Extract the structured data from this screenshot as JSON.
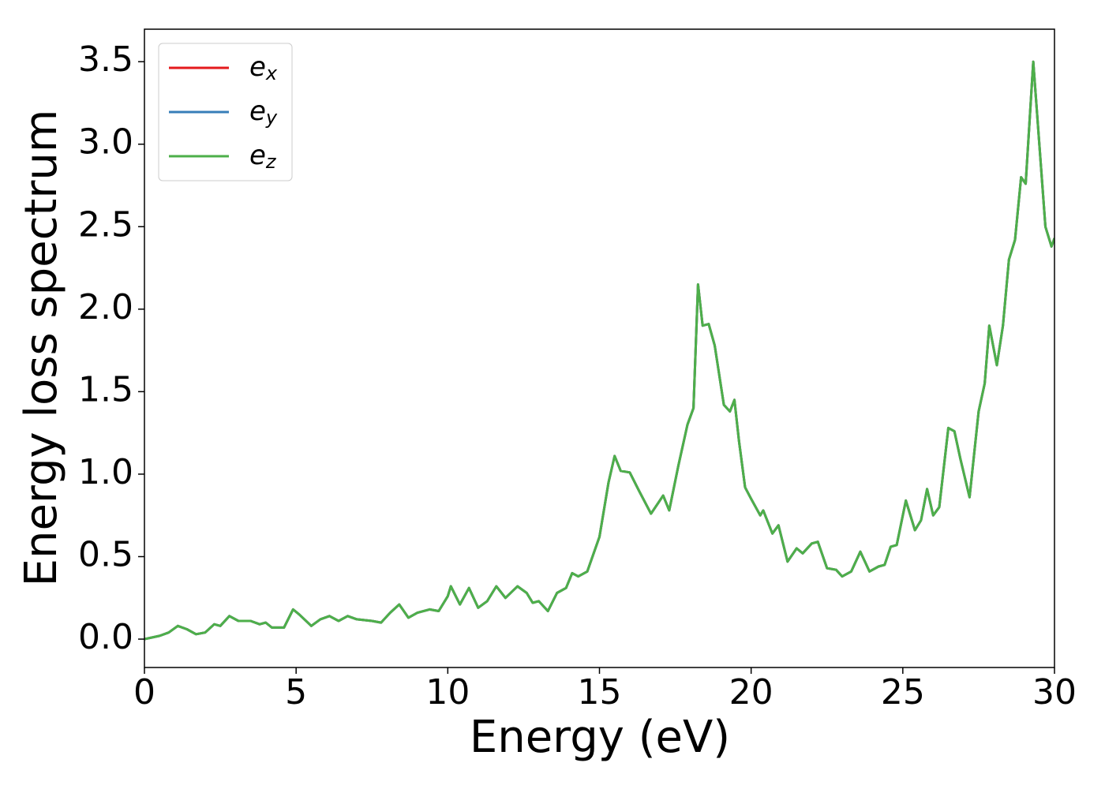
{
  "chart_data": {
    "type": "line",
    "xlabel": "Energy (eV)",
    "ylabel": "Energy loss spectrum",
    "x": [
      0,
      0.5,
      0.8,
      1.1,
      1.4,
      1.7,
      2.0,
      2.3,
      2.5,
      2.8,
      3.1,
      3.5,
      3.8,
      4.0,
      4.2,
      4.6,
      4.9,
      5.1,
      5.5,
      5.8,
      6.1,
      6.4,
      6.7,
      7.0,
      7.5,
      7.8,
      8.1,
      8.4,
      8.7,
      9.0,
      9.4,
      9.7,
      10.0,
      10.1,
      10.4,
      10.7,
      11.0,
      11.3,
      11.6,
      11.9,
      12.3,
      12.6,
      12.8,
      13.0,
      13.3,
      13.6,
      13.9,
      14.1,
      14.3,
      14.6,
      15.0,
      15.3,
      15.5,
      15.7,
      16.0,
      16.3,
      16.7,
      17.1,
      17.3,
      17.6,
      17.9,
      18.1,
      18.25,
      18.4,
      18.6,
      18.8,
      19.1,
      19.3,
      19.45,
      19.6,
      19.8,
      20.0,
      20.3,
      20.4,
      20.7,
      20.9,
      21.2,
      21.5,
      21.7,
      22.0,
      22.2,
      22.5,
      22.8,
      23.0,
      23.3,
      23.6,
      23.9,
      24.2,
      24.4,
      24.6,
      24.8,
      25.1,
      25.4,
      25.6,
      25.8,
      26.0,
      26.2,
      26.5,
      26.7,
      26.9,
      27.2,
      27.5,
      27.7,
      27.85,
      28.1,
      28.3,
      28.5,
      28.7,
      28.9,
      29.05,
      29.3,
      29.5,
      29.7,
      29.9,
      30
    ],
    "series": [
      {
        "name": "e",
        "sub": "x",
        "color": "#e41a1c",
        "values": [
          0,
          0.02,
          0.04,
          0.08,
          0.06,
          0.03,
          0.04,
          0.09,
          0.08,
          0.14,
          0.11,
          0.11,
          0.09,
          0.1,
          0.07,
          0.07,
          0.18,
          0.15,
          0.08,
          0.12,
          0.14,
          0.11,
          0.14,
          0.12,
          0.11,
          0.1,
          0.16,
          0.21,
          0.13,
          0.16,
          0.18,
          0.17,
          0.26,
          0.32,
          0.21,
          0.31,
          0.19,
          0.23,
          0.32,
          0.25,
          0.32,
          0.28,
          0.22,
          0.23,
          0.17,
          0.28,
          0.31,
          0.4,
          0.38,
          0.41,
          0.62,
          0.95,
          1.11,
          1.02,
          1.01,
          0.9,
          0.76,
          0.87,
          0.78,
          1.05,
          1.3,
          1.4,
          2.15,
          1.9,
          1.91,
          1.78,
          1.42,
          1.38,
          1.45,
          1.2,
          0.92,
          0.85,
          0.75,
          0.78,
          0.64,
          0.69,
          0.47,
          0.55,
          0.52,
          0.58,
          0.59,
          0.43,
          0.42,
          0.38,
          0.41,
          0.53,
          0.41,
          0.44,
          0.45,
          0.56,
          0.57,
          0.84,
          0.66,
          0.72,
          0.91,
          0.75,
          0.8,
          1.28,
          1.26,
          1.09,
          0.86,
          1.38,
          1.55,
          1.9,
          1.66,
          1.9,
          2.3,
          2.42,
          2.8,
          2.76,
          3.5,
          3.0,
          2.5,
          2.38,
          2.43
        ]
      },
      {
        "name": "e",
        "sub": "y",
        "color": "#377eb8",
        "values": [
          0,
          0.02,
          0.04,
          0.08,
          0.06,
          0.03,
          0.04,
          0.09,
          0.08,
          0.14,
          0.11,
          0.11,
          0.09,
          0.1,
          0.07,
          0.07,
          0.18,
          0.15,
          0.08,
          0.12,
          0.14,
          0.11,
          0.14,
          0.12,
          0.11,
          0.1,
          0.16,
          0.21,
          0.13,
          0.16,
          0.18,
          0.17,
          0.26,
          0.32,
          0.21,
          0.31,
          0.19,
          0.23,
          0.32,
          0.25,
          0.32,
          0.28,
          0.22,
          0.23,
          0.17,
          0.28,
          0.31,
          0.4,
          0.38,
          0.41,
          0.62,
          0.95,
          1.11,
          1.02,
          1.01,
          0.9,
          0.76,
          0.87,
          0.78,
          1.05,
          1.3,
          1.4,
          2.15,
          1.9,
          1.91,
          1.78,
          1.42,
          1.38,
          1.45,
          1.2,
          0.92,
          0.85,
          0.75,
          0.78,
          0.64,
          0.69,
          0.47,
          0.55,
          0.52,
          0.58,
          0.59,
          0.43,
          0.42,
          0.38,
          0.41,
          0.53,
          0.41,
          0.44,
          0.45,
          0.56,
          0.57,
          0.84,
          0.66,
          0.72,
          0.91,
          0.75,
          0.8,
          1.28,
          1.26,
          1.09,
          0.86,
          1.38,
          1.55,
          1.9,
          1.66,
          1.9,
          2.3,
          2.42,
          2.8,
          2.76,
          3.5,
          3.0,
          2.5,
          2.38,
          2.43
        ]
      },
      {
        "name": "e",
        "sub": "z",
        "color": "#4daf4a",
        "values": [
          0,
          0.02,
          0.04,
          0.08,
          0.06,
          0.03,
          0.04,
          0.09,
          0.08,
          0.14,
          0.11,
          0.11,
          0.09,
          0.1,
          0.07,
          0.07,
          0.18,
          0.15,
          0.08,
          0.12,
          0.14,
          0.11,
          0.14,
          0.12,
          0.11,
          0.1,
          0.16,
          0.21,
          0.13,
          0.16,
          0.18,
          0.17,
          0.26,
          0.32,
          0.21,
          0.31,
          0.19,
          0.23,
          0.32,
          0.25,
          0.32,
          0.28,
          0.22,
          0.23,
          0.17,
          0.28,
          0.31,
          0.4,
          0.38,
          0.41,
          0.62,
          0.95,
          1.11,
          1.02,
          1.01,
          0.9,
          0.76,
          0.87,
          0.78,
          1.05,
          1.3,
          1.4,
          2.15,
          1.9,
          1.91,
          1.78,
          1.42,
          1.38,
          1.45,
          1.2,
          0.92,
          0.85,
          0.75,
          0.78,
          0.64,
          0.69,
          0.47,
          0.55,
          0.52,
          0.58,
          0.59,
          0.43,
          0.42,
          0.38,
          0.41,
          0.53,
          0.41,
          0.44,
          0.45,
          0.56,
          0.57,
          0.84,
          0.66,
          0.72,
          0.91,
          0.75,
          0.8,
          1.28,
          1.26,
          1.09,
          0.86,
          1.38,
          1.55,
          1.9,
          1.66,
          1.9,
          2.3,
          2.42,
          2.8,
          2.76,
          3.5,
          3.0,
          2.5,
          2.38,
          2.43
        ]
      }
    ],
    "xlim": [
      0,
      30
    ],
    "xticks": [
      0,
      5,
      10,
      15,
      20,
      25,
      30
    ],
    "ylim": [
      -0.172,
      3.697
    ],
    "yticks": [
      {
        "value": 0,
        "label": "0.0"
      },
      0.5,
      {
        "value": 1,
        "label": "1.0"
      },
      1.5,
      {
        "value": 2,
        "label": "2.0"
      },
      2.5,
      {
        "value": 3,
        "label": "3.0"
      },
      3.5
    ],
    "legend": "upper left",
    "grid": false
  }
}
